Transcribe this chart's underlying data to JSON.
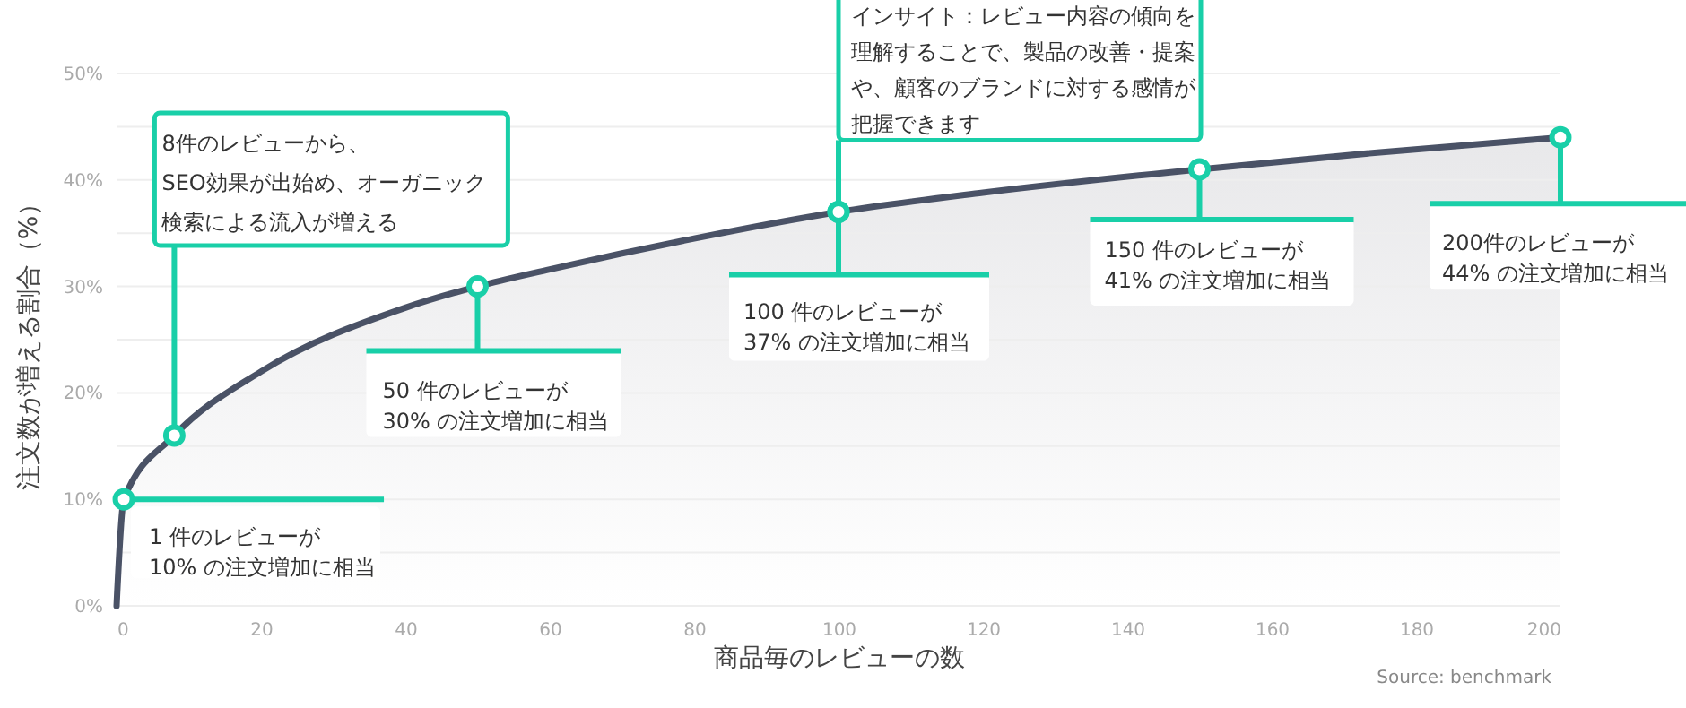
{
  "chart_data": {
    "type": "area",
    "xlabel": "商品毎のレビューの数",
    "ylabel": "注文数が増える割合（%）",
    "xlim": [
      0,
      200
    ],
    "xticks": [
      0,
      20,
      40,
      60,
      80,
      100,
      120,
      140,
      160,
      180,
      200
    ],
    "ylim": [
      0,
      50
    ],
    "yticks": [
      {
        "value": 0,
        "label": "0%"
      },
      {
        "value": 5,
        "label": null
      },
      {
        "value": 10,
        "label": "10%"
      },
      {
        "value": 15,
        "label": null
      },
      {
        "value": 20,
        "label": "20%"
      },
      {
        "value": 25,
        "label": null
      },
      {
        "value": 30,
        "label": "30%"
      },
      {
        "value": 35,
        "label": null
      },
      {
        "value": 40,
        "label": "40%"
      },
      {
        "value": 45,
        "label": null
      },
      {
        "value": 50,
        "label": "50%"
      }
    ],
    "grid": "y",
    "x": [
      0,
      1,
      8,
      20,
      40,
      50,
      60,
      80,
      100,
      120,
      150,
      175,
      200
    ],
    "series": [
      {
        "color": "#4a5266",
        "values": [
          0,
          10,
          16,
          22,
          28,
          30,
          31.6,
          34.5,
          37,
          38.8,
          41,
          42.6,
          44
        ]
      }
    ],
    "annotations": [
      {
        "text": "1 件のレビューが\n10% の注文増加に相当",
        "x": 1,
        "y": 10
      },
      {
        "text": "8件のレビューから、SEO効果が出始め、オーガニック検索による流入が増える",
        "x": 8,
        "y": 16
      },
      {
        "text": "50 件のレビューが\n30% の注文増加に相当",
        "x": 50,
        "y": 30
      },
      {
        "text": "100 件のレビューが\n37% の注文増加に相当",
        "x": 100,
        "y": 37
      },
      {
        "text": "インサイト：レビュー内容の傾向を理解することで、製品の改善・提案や、顧客のブランドに対する感情が把握できます",
        "x": 100,
        "y": 37
      },
      {
        "text": "150 件のレビューが\n41% の注文増加に相当",
        "x": 150,
        "y": 41
      },
      {
        "text": "200件のレビューが\n44% の注文増加に相当",
        "x": 200,
        "y": 44
      },
      "Source: benchmark"
    ]
  }
}
